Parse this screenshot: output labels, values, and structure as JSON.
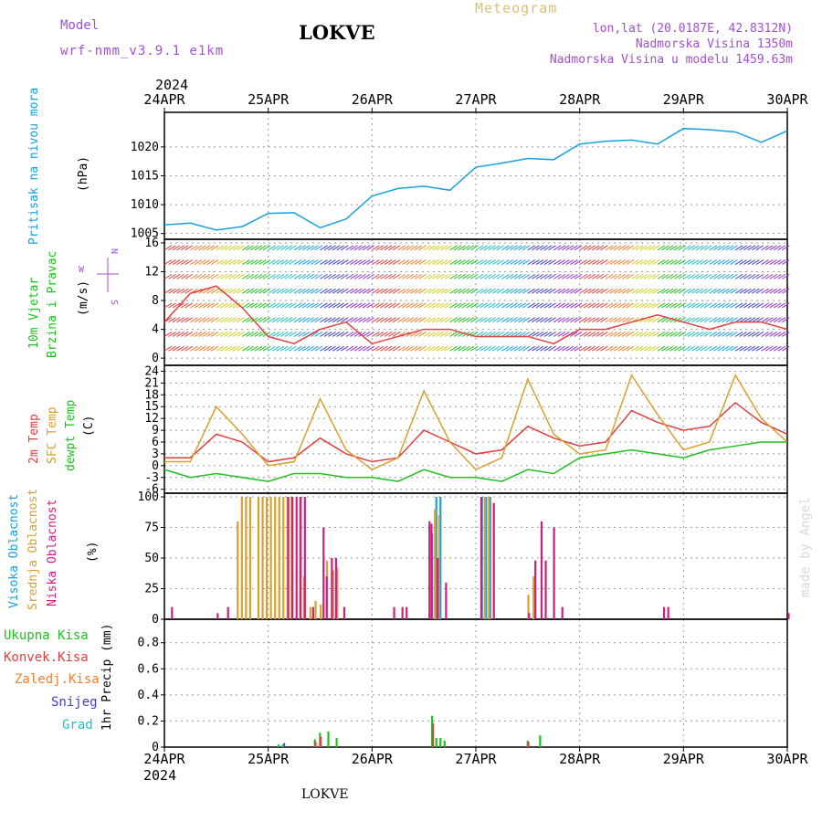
{
  "header": {
    "model_label": "Model",
    "model_value": "wrf-nmm_v3.9.1  e1km",
    "title": "LOKVE",
    "meteogram": "Meteogram",
    "lonlat": "lon,lat (20.0187E, 42.8312N)",
    "altitude": "Nadmorska Visina 1350m",
    "model_altitude": "Nadmorska Visina u modelu 1459.63m",
    "year_top": "2024",
    "year_bottom": "2024",
    "footer": "LOKVE",
    "credit": "made by Angel"
  },
  "colors": {
    "pressure": "#1aa0e0",
    "temp2m": "#e04040",
    "sfc": "#d8a030",
    "dewpt": "#20c020",
    "high_cloud": "#1aa0e0",
    "mid_cloud": "#d8a030",
    "low_cloud": "#cc2080",
    "precip_total": "#20c020",
    "precip_conv": "#e04040",
    "snow": "#4040d0",
    "grad": "#20c0c0",
    "purple_text": "#a050d0",
    "gold_text": "#e0c070"
  },
  "chart_data": [
    {
      "type": "line",
      "name": "pressure",
      "ylabel_left": "Pritisak na nivou mora",
      "unit": "(hPa)",
      "x_ticks": [
        "24APR",
        "25APR",
        "26APR",
        "27APR",
        "28APR",
        "29APR",
        "30APR"
      ],
      "yticks": [
        1005,
        1010,
        1015,
        1020
      ],
      "ylim": [
        1004,
        1026
      ],
      "x": [
        0,
        0.25,
        0.5,
        0.75,
        1.0,
        1.25,
        1.5,
        1.75,
        2.0,
        2.25,
        2.5,
        2.75,
        3.0,
        3.25,
        3.5,
        3.75,
        4.0,
        4.25,
        4.5,
        4.75,
        5.0,
        5.25,
        5.5,
        5.75,
        6.0
      ],
      "values": [
        1006.5,
        1006.8,
        1005.6,
        1006.2,
        1008.5,
        1008.6,
        1006.0,
        1007.5,
        1011.5,
        1012.8,
        1013.2,
        1012.5,
        1016.5,
        1017.2,
        1018.0,
        1017.8,
        1020.5,
        1021.0,
        1021.2,
        1020.5,
        1023.2,
        1023.0,
        1022.6,
        1020.8,
        1022.8
      ],
      "grid": true
    },
    {
      "type": "line",
      "name": "wind",
      "ylabel_left": "10m Vjetar",
      "ylabel_left2": "Brzina i Pravac",
      "unit": "(m/s)",
      "legend_labels": [
        "N",
        "W",
        "E",
        "S"
      ],
      "yticks": [
        0,
        4,
        8,
        12,
        16
      ],
      "ylim": [
        -1,
        16.5
      ],
      "x": [
        0,
        0.25,
        0.5,
        0.75,
        1.0,
        1.25,
        1.5,
        1.75,
        2.0,
        2.25,
        2.5,
        2.75,
        3.0,
        3.25,
        3.5,
        3.75,
        4.0,
        4.25,
        4.5,
        4.75,
        5.0,
        5.25,
        5.5,
        5.75,
        6.0
      ],
      "values": [
        5,
        9,
        10,
        7,
        3,
        2,
        4,
        5,
        2,
        3,
        4,
        4,
        3,
        3,
        3,
        2,
        4,
        4,
        5,
        6,
        5,
        4,
        5,
        5,
        4
      ],
      "grid": true
    },
    {
      "type": "line",
      "name": "temperature",
      "ylabel_left": "2m Temp",
      "ylabel_left2": "SFC Temp",
      "ylabel_left3": "dewpt Temp",
      "unit": "(C)",
      "yticks": [
        -6,
        -3,
        0,
        3,
        6,
        9,
        12,
        15,
        18,
        21,
        24
      ],
      "ylim": [
        -7,
        25.5
      ],
      "x": [
        0,
        0.25,
        0.5,
        0.75,
        1.0,
        1.25,
        1.5,
        1.75,
        2.0,
        2.25,
        2.5,
        2.75,
        3.0,
        3.25,
        3.5,
        3.75,
        4.0,
        4.25,
        4.5,
        4.75,
        5.0,
        5.25,
        5.5,
        5.75,
        6.0
      ],
      "series": [
        {
          "name": "2m Temp",
          "values": [
            2,
            2,
            8,
            6,
            1,
            2,
            7,
            3,
            1,
            2,
            9,
            6,
            3,
            4,
            10,
            7,
            5,
            6,
            14,
            11,
            9,
            10,
            16,
            11,
            8
          ]
        },
        {
          "name": "SFC Temp",
          "values": [
            1,
            1,
            15,
            8,
            0,
            1,
            17,
            4,
            -1,
            2,
            19,
            6,
            -1,
            2,
            22,
            8,
            3,
            4,
            23,
            13,
            4,
            6,
            23,
            12,
            6
          ]
        },
        {
          "name": "dewpt Temp",
          "values": [
            -1,
            -3,
            -2,
            -3,
            -4,
            -2,
            -2,
            -3,
            -3,
            -4,
            -1,
            -3,
            -3,
            -4,
            -1,
            -2,
            2,
            3,
            4,
            3,
            2,
            4,
            5,
            6,
            6
          ]
        }
      ],
      "grid": true
    },
    {
      "type": "bar",
      "name": "cloud_cover",
      "ylabel_left": "Visoka Oblacnost",
      "ylabel_left2": "Srednja Oblacnost",
      "ylabel_left3": "Niska Oblacnost",
      "unit": "(%)",
      "yticks": [
        0,
        25,
        50,
        75,
        100
      ],
      "ylim": [
        0,
        103
      ],
      "series": [
        {
          "name": "Visoka Oblacnost",
          "x": [
            2.58,
            2.62,
            2.66,
            3.06,
            3.1,
            3.14
          ],
          "values": [
            70,
            100,
            100,
            100,
            100,
            100
          ]
        },
        {
          "name": "Srednja Oblacnost",
          "x": [
            0.7,
            0.74,
            0.78,
            0.82,
            0.9,
            0.94,
            0.98,
            1.02,
            1.06,
            1.1,
            1.14,
            1.18,
            1.22,
            1.3,
            1.34,
            1.4,
            1.45,
            1.5,
            1.56,
            1.62,
            1.66,
            2.6,
            2.64,
            3.08,
            3.12,
            3.5,
            3.55
          ],
          "values": [
            80,
            100,
            100,
            100,
            100,
            100,
            100,
            100,
            100,
            100,
            100,
            100,
            100,
            100,
            35,
            10,
            15,
            12,
            48,
            40,
            42,
            90,
            85,
            100,
            100,
            20,
            35
          ]
        },
        {
          "name": "Niska Oblacnost",
          "x": [
            0.06,
            0.5,
            0.6,
            1.18,
            1.22,
            1.26,
            1.3,
            1.34,
            1.42,
            1.52,
            1.55,
            1.6,
            1.64,
            1.72,
            2.2,
            2.28,
            2.32,
            2.54,
            2.56,
            2.62,
            2.7,
            3.04,
            3.16,
            3.5,
            3.56,
            3.62,
            3.66,
            3.74,
            3.82,
            4.8,
            4.84,
            6.0
          ],
          "values": [
            10,
            5,
            10,
            100,
            100,
            100,
            100,
            100,
            10,
            75,
            35,
            50,
            50,
            10,
            10,
            10,
            10,
            80,
            78,
            50,
            30,
            100,
            95,
            5,
            48,
            80,
            48,
            75,
            10,
            10,
            10,
            5
          ]
        }
      ],
      "grid": true
    },
    {
      "type": "bar",
      "name": "precip",
      "ylabel_left": "1hr Precip (mm)",
      "legend": [
        "Ukupna Kisa",
        "Konvek.Kisa",
        "Zaledj.Kisa",
        "Snijeg",
        "Grad"
      ],
      "yticks": [
        0,
        0.2,
        0.4,
        0.6,
        0.8
      ],
      "ylim": [
        0,
        0.98
      ],
      "series": [
        {
          "name": "Ukupna Kisa",
          "x": [
            1.1,
            1.45,
            1.5,
            1.58,
            1.66,
            2.58,
            2.62,
            2.66,
            2.7,
            3.5,
            3.62
          ],
          "values": [
            0.02,
            0.06,
            0.11,
            0.12,
            0.07,
            0.24,
            0.07,
            0.07,
            0.05,
            0.05,
            0.09
          ]
        },
        {
          "name": "Konvek.Kisa",
          "x": [
            1.45,
            1.5,
            2.58,
            3.5
          ],
          "values": [
            0.04,
            0.08,
            0.18,
            0.04
          ]
        },
        {
          "name": "Snijeg",
          "x": [
            1.14
          ],
          "values": [
            0.03
          ]
        },
        {
          "name": "Grad",
          "x": [
            1.12
          ],
          "values": [
            0.02
          ]
        }
      ],
      "grid": true
    }
  ]
}
